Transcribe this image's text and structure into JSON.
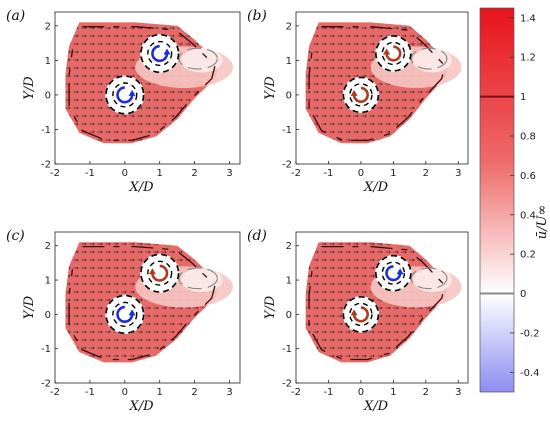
{
  "chart_data": {
    "type": "heatmap",
    "panels": [
      {
        "label": "(a)",
        "xlabel": "X/D",
        "ylabel": "Y/D",
        "xlim": [
          -2,
          3.3
        ],
        "ylim": [
          -2,
          2.4
        ],
        "xticks": [
          -2,
          -1,
          0,
          1,
          2,
          3
        ],
        "yticks": [
          -2,
          -1,
          0,
          1,
          2
        ],
        "rotors": [
          {
            "x": 1.0,
            "y": 1.2,
            "rotation": "counter-clockwise",
            "color": "#1f2fd6"
          },
          {
            "x": 0.0,
            "y": 0.0,
            "rotation": "counter-clockwise",
            "color": "#1f2fd6"
          }
        ]
      },
      {
        "label": "(b)",
        "xlabel": "X/D",
        "ylabel": "Y/D",
        "xlim": [
          -2,
          3.3
        ],
        "ylim": [
          -2,
          2.4
        ],
        "xticks": [
          -2,
          -1,
          0,
          1,
          2,
          3
        ],
        "yticks": [
          -2,
          -1,
          0,
          1,
          2
        ],
        "rotors": [
          {
            "x": 1.0,
            "y": 1.2,
            "rotation": "clockwise",
            "color": "#b03a1e"
          },
          {
            "x": 0.0,
            "y": 0.0,
            "rotation": "clockwise",
            "color": "#b03a1e"
          }
        ]
      },
      {
        "label": "(c)",
        "xlabel": "X/D",
        "ylabel": "Y/D",
        "xlim": [
          -2,
          3.3
        ],
        "ylim": [
          -2,
          2.4
        ],
        "xticks": [
          -2,
          -1,
          0,
          1,
          2,
          3
        ],
        "yticks": [
          -2,
          -1,
          0,
          1,
          2
        ],
        "rotors": [
          {
            "x": 1.0,
            "y": 1.2,
            "rotation": "clockwise",
            "color": "#b03a1e"
          },
          {
            "x": 0.0,
            "y": 0.0,
            "rotation": "counter-clockwise",
            "color": "#1f2fd6"
          }
        ]
      },
      {
        "label": "(d)",
        "xlabel": "X/D",
        "ylabel": "Y/D",
        "xlim": [
          -2,
          3.3
        ],
        "ylim": [
          -2,
          2.4
        ],
        "xticks": [
          -2,
          -1,
          0,
          1,
          2,
          3
        ],
        "yticks": [
          -2,
          -1,
          0,
          1,
          2
        ],
        "rotors": [
          {
            "x": 1.0,
            "y": 1.2,
            "rotation": "counter-clockwise",
            "color": "#1f2fd6"
          },
          {
            "x": 0.0,
            "y": 0.0,
            "rotation": "clockwise",
            "color": "#b03a1e"
          }
        ]
      }
    ],
    "colorbar": {
      "label": "ū/U∞",
      "range": [
        -0.5,
        1.45
      ],
      "ticks": [
        -0.4,
        -0.2,
        0,
        0.2,
        0.4,
        0.6,
        0.8,
        1,
        1.2,
        1.4
      ],
      "tick_labels": [
        "-0.4",
        "-0.2",
        "0",
        "0.2",
        "0.4",
        "0.6",
        "0.8",
        "1",
        "1.2",
        "1.4"
      ],
      "colormap": {
        "low": "#8c8cf0",
        "zero": "#ffffff",
        "high": "#e8141c"
      },
      "contour_levels": [
        {
          "value": 1,
          "color": "#7a1010"
        },
        {
          "value": 0,
          "color": "#888888"
        }
      ]
    }
  }
}
